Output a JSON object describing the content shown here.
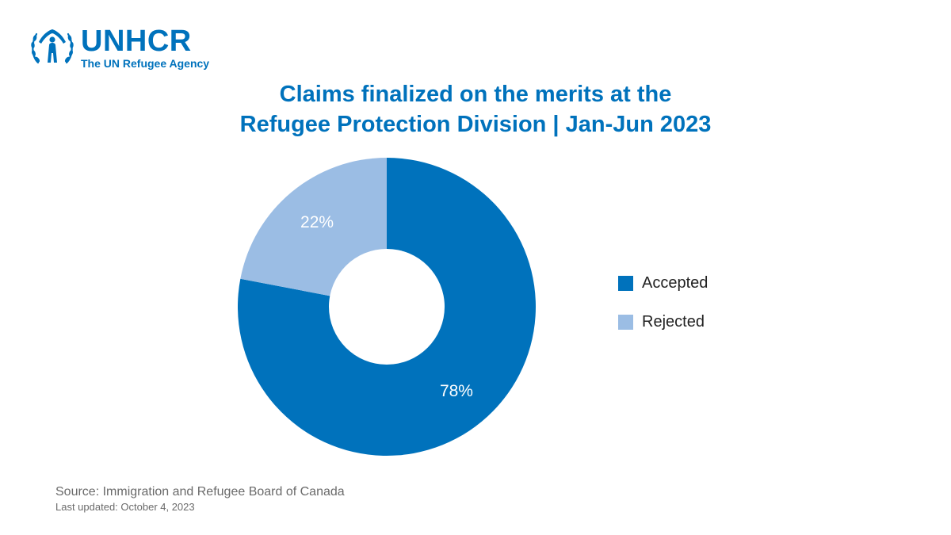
{
  "logo": {
    "name": "UNHCR",
    "tagline": "The UN Refugee Agency",
    "icon": "unhcr-emblem-icon"
  },
  "colors": {
    "brand": "#0072bc",
    "accepted": "#0072bc",
    "rejected": "#9bbde4",
    "hole": "#ffffff",
    "text_muted": "#6a6a6a"
  },
  "chart_data": {
    "type": "pie",
    "donut": true,
    "title_lines": [
      "Claims finalized on the merits at the",
      "Refugee Protection Division | Jan-Jun 2023"
    ],
    "categories": [
      "Accepted",
      "Rejected"
    ],
    "values": [
      78,
      22
    ],
    "labels": [
      "78%",
      "22%"
    ],
    "colors": [
      "#0072bc",
      "#9bbde4"
    ],
    "legend_position": "right"
  },
  "footer": {
    "source": "Source: Immigration and Refugee Board of Canada",
    "updated": "Last updated: October 4, 2023"
  }
}
